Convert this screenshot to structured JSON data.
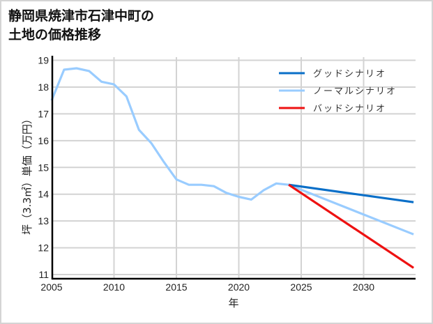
{
  "title": "静岡県焼津市石津中町の\n土地の価格推移",
  "chart_data": {
    "type": "line",
    "title": "静岡県焼津市石津中町の土地の価格推移",
    "xlabel": "年",
    "ylabel": "坪（3.3㎡）単価（万円）",
    "xlim": [
      2005,
      2034
    ],
    "ylim": [
      11,
      19
    ],
    "xticks": [
      2005,
      2010,
      2015,
      2020,
      2025,
      2030
    ],
    "yticks": [
      11,
      12,
      13,
      14,
      15,
      16,
      17,
      18,
      19
    ],
    "grid": true,
    "legend_position": "upper right",
    "series": [
      {
        "name": "グッドシナリオ",
        "color": "#0a6fc8",
        "x": [
          2024,
          2034
        ],
        "y": [
          14.35,
          13.7
        ]
      },
      {
        "name": "ノーマルシナリオ",
        "color": "#99ccff",
        "x": [
          2005,
          2006,
          2007,
          2008,
          2009,
          2010,
          2011,
          2012,
          2013,
          2014,
          2015,
          2016,
          2017,
          2018,
          2019,
          2020,
          2021,
          2022,
          2023,
          2024,
          2034
        ],
        "y": [
          17.5,
          18.65,
          18.7,
          18.6,
          18.2,
          18.1,
          17.65,
          16.4,
          15.9,
          15.2,
          14.55,
          14.35,
          14.35,
          14.3,
          14.05,
          13.9,
          13.8,
          14.15,
          14.4,
          14.35,
          12.5
        ]
      },
      {
        "name": "バッドシナリオ",
        "color": "#ee1111",
        "x": [
          2024,
          2034
        ],
        "y": [
          14.35,
          11.25
        ]
      }
    ]
  }
}
